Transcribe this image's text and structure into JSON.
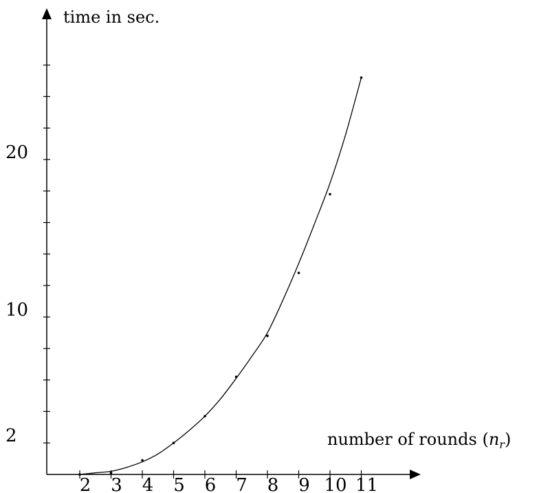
{
  "chart_data": {
    "type": "scatter",
    "ylabel": "time in sec.",
    "xlabel_text": "number of rounds (",
    "xlabel_var": "n",
    "xlabel_sub": "r",
    "xlabel_close": ")",
    "x_ticks": [
      2,
      3,
      4,
      5,
      6,
      7,
      8,
      9,
      10,
      11
    ],
    "x_tick_labels": [
      "2",
      "3",
      "4",
      "5",
      "6",
      "7",
      "8",
      "9",
      "10",
      "11"
    ],
    "y_label_ticks": [
      2,
      10,
      20
    ],
    "y_tick_labels": [
      "2",
      "10",
      "20"
    ],
    "y_minor_ticks": [
      4,
      6,
      8,
      12,
      14,
      16,
      18,
      22,
      24,
      26
    ],
    "xlim": [
      1,
      12.5
    ],
    "ylim": [
      0,
      28.5
    ],
    "series": [
      {
        "x": [
          2,
          3,
          4,
          5,
          6,
          7,
          8,
          9,
          10,
          11
        ],
        "y": [
          0.0,
          0.1,
          0.9,
          2.0,
          3.7,
          6.2,
          8.8,
          12.8,
          17.8,
          25.2
        ]
      }
    ],
    "fit_curve": {
      "x": [
        2,
        2.5,
        3,
        3.5,
        4,
        4.5,
        5,
        5.5,
        6,
        6.5,
        7,
        7.5,
        8,
        8.5,
        9,
        9.5,
        10,
        10.5,
        11
      ],
      "y": [
        0.0,
        0.1,
        0.2,
        0.45,
        0.8,
        1.3,
        2.0,
        2.8,
        3.7,
        4.8,
        6.1,
        7.5,
        9.0,
        11.1,
        13.4,
        15.9,
        18.5,
        21.6,
        25.2
      ]
    }
  }
}
